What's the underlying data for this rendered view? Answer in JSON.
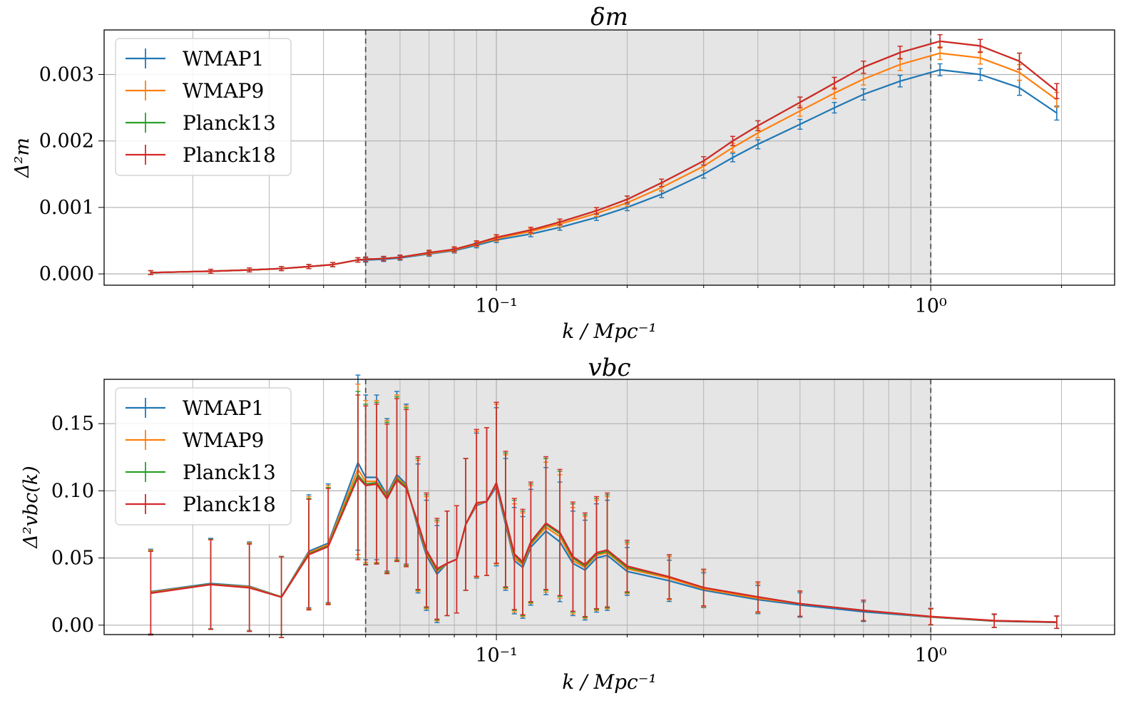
{
  "chart_data": [
    {
      "type": "line",
      "title": "δm",
      "xlabel": "k / Mpc⁻¹",
      "ylabel": "Δ²m",
      "xscale": "log",
      "xlim": [
        0.0125,
        2.65
      ],
      "ylim": [
        -0.00017,
        0.00367
      ],
      "yticks": [
        "0.000",
        "0.001",
        "0.002",
        "0.003"
      ],
      "ytick_values": [
        0,
        0.001,
        0.002,
        0.003
      ],
      "xticks": [
        "10⁻¹",
        "10⁰"
      ],
      "xtick_values": [
        0.1,
        1.0
      ],
      "shaded_range": [
        0.05,
        1.0
      ],
      "grid": true,
      "legend_position": "top-left",
      "error_bars": true,
      "series": [
        {
          "name": "WMAP1",
          "color": "#1f77b4",
          "x": [
            0.016,
            0.022,
            0.027,
            0.032,
            0.037,
            0.042,
            0.048,
            0.05,
            0.055,
            0.06,
            0.07,
            0.08,
            0.09,
            0.1,
            0.12,
            0.14,
            0.17,
            0.2,
            0.24,
            0.3,
            0.35,
            0.4,
            0.5,
            0.6,
            0.7,
            0.85,
            1.05,
            1.3,
            1.6,
            1.95
          ],
          "y": [
            2e-05,
            4e-05,
            6e-05,
            8e-05,
            0.00011,
            0.00014,
            0.00021,
            0.00021,
            0.00022,
            0.00024,
            0.0003,
            0.00035,
            0.00043,
            0.00051,
            0.0006,
            0.0007,
            0.00085,
            0.001,
            0.0012,
            0.0015,
            0.00175,
            0.00195,
            0.00225,
            0.0025,
            0.0027,
            0.0029,
            0.00307,
            0.003,
            0.0028,
            0.00242
          ]
        },
        {
          "name": "WMAP9",
          "color": "#ff7f0e",
          "x": [
            0.016,
            0.022,
            0.027,
            0.032,
            0.037,
            0.042,
            0.048,
            0.05,
            0.055,
            0.06,
            0.07,
            0.08,
            0.09,
            0.1,
            0.12,
            0.14,
            0.17,
            0.2,
            0.24,
            0.3,
            0.35,
            0.4,
            0.5,
            0.6,
            0.7,
            0.85,
            1.05,
            1.3,
            1.6,
            1.95
          ],
          "y": [
            2e-05,
            4e-05,
            6e-05,
            8e-05,
            0.00011,
            0.00014,
            0.00021,
            0.00022,
            0.00023,
            0.00025,
            0.00031,
            0.00036,
            0.00045,
            0.00053,
            0.00064,
            0.00075,
            0.00091,
            0.00107,
            0.0013,
            0.00162,
            0.0019,
            0.00212,
            0.00245,
            0.00272,
            0.00293,
            0.00315,
            0.00332,
            0.00325,
            0.00303,
            0.00262
          ]
        },
        {
          "name": "Planck13",
          "color": "#2ca02c",
          "x": [
            0.016,
            0.022,
            0.027,
            0.032,
            0.037,
            0.042,
            0.048,
            0.05,
            0.055,
            0.06,
            0.07,
            0.08,
            0.09,
            0.1,
            0.12,
            0.14,
            0.17,
            0.2,
            0.24,
            0.3,
            0.35,
            0.4,
            0.5,
            0.6,
            0.7,
            0.85,
            1.05,
            1.3,
            1.6,
            1.95
          ],
          "y": [
            2e-05,
            4e-05,
            6e-05,
            8e-05,
            0.00011,
            0.00014,
            0.00021,
            0.00022,
            0.00023,
            0.00025,
            0.00032,
            0.00037,
            0.00046,
            0.00055,
            0.00066,
            0.00078,
            0.00095,
            0.00112,
            0.00137,
            0.0017,
            0.002,
            0.00223,
            0.00258,
            0.00287,
            0.00311,
            0.00333,
            0.0035,
            0.00343,
            0.0032,
            0.00275
          ]
        },
        {
          "name": "Planck18",
          "color": "#d62728",
          "x": [
            0.016,
            0.022,
            0.027,
            0.032,
            0.037,
            0.042,
            0.048,
            0.05,
            0.055,
            0.06,
            0.07,
            0.08,
            0.09,
            0.1,
            0.12,
            0.14,
            0.17,
            0.2,
            0.24,
            0.3,
            0.35,
            0.4,
            0.5,
            0.6,
            0.7,
            0.85,
            1.05,
            1.3,
            1.6,
            1.95
          ],
          "y": [
            2e-05,
            4e-05,
            6e-05,
            8e-05,
            0.00011,
            0.00014,
            0.00021,
            0.00022,
            0.00023,
            0.00025,
            0.00032,
            0.00037,
            0.00046,
            0.00055,
            0.00066,
            0.00078,
            0.00095,
            0.00112,
            0.00137,
            0.0017,
            0.002,
            0.00223,
            0.00258,
            0.00287,
            0.00311,
            0.00333,
            0.0035,
            0.00343,
            0.0032,
            0.00275
          ]
        }
      ]
    },
    {
      "type": "line",
      "title": "vbc",
      "xlabel": "k / Mpc⁻¹",
      "ylabel": "Δ²vbc(k)",
      "xscale": "log",
      "xlim": [
        0.0125,
        2.65
      ],
      "ylim": [
        -0.007,
        0.183
      ],
      "yticks": [
        "0.00",
        "0.05",
        "0.10",
        "0.15"
      ],
      "ytick_values": [
        0,
        0.05,
        0.1,
        0.15
      ],
      "xticks": [
        "10⁻¹",
        "10⁰"
      ],
      "xtick_values": [
        0.1,
        1.0
      ],
      "shaded_range": [
        0.05,
        1.0
      ],
      "grid": true,
      "legend_position": "top-left",
      "error_bars": true,
      "series": [
        {
          "name": "WMAP1",
          "color": "#1f77b4",
          "x": [
            0.016,
            0.022,
            0.027,
            0.032,
            0.037,
            0.041,
            0.048,
            0.05,
            0.053,
            0.056,
            0.059,
            0.062,
            0.066,
            0.069,
            0.073,
            0.077,
            0.081,
            0.085,
            0.09,
            0.095,
            0.1,
            0.105,
            0.11,
            0.115,
            0.12,
            0.13,
            0.14,
            0.15,
            0.16,
            0.17,
            0.18,
            0.2,
            0.25,
            0.3,
            0.4,
            0.5,
            0.7,
            1.0,
            1.4,
            1.95
          ],
          "y": [
            0.025,
            0.031,
            0.029,
            0.021,
            0.055,
            0.061,
            0.121,
            0.11,
            0.11,
            0.097,
            0.112,
            0.105,
            0.072,
            0.052,
            0.038,
            0.046,
            0.049,
            0.075,
            0.089,
            0.092,
            0.103,
            0.075,
            0.048,
            0.043,
            0.058,
            0.07,
            0.062,
            0.046,
            0.041,
            0.05,
            0.052,
            0.04,
            0.033,
            0.026,
            0.019,
            0.015,
            0.01,
            0.006,
            0.003,
            0.002
          ]
        },
        {
          "name": "WMAP9",
          "color": "#ff7f0e",
          "x": [
            0.016,
            0.022,
            0.027,
            0.032,
            0.037,
            0.041,
            0.048,
            0.05,
            0.053,
            0.056,
            0.059,
            0.062,
            0.066,
            0.069,
            0.073,
            0.077,
            0.081,
            0.085,
            0.09,
            0.095,
            0.1,
            0.105,
            0.11,
            0.115,
            0.12,
            0.13,
            0.14,
            0.15,
            0.16,
            0.17,
            0.18,
            0.2,
            0.25,
            0.3,
            0.4,
            0.5,
            0.7,
            1.0,
            1.4,
            1.95
          ],
          "y": [
            0.0245,
            0.0305,
            0.0285,
            0.021,
            0.054,
            0.06,
            0.116,
            0.107,
            0.107,
            0.096,
            0.11,
            0.104,
            0.074,
            0.054,
            0.04,
            0.046,
            0.049,
            0.075,
            0.09,
            0.092,
            0.105,
            0.077,
            0.05,
            0.045,
            0.06,
            0.073,
            0.066,
            0.048,
            0.043,
            0.052,
            0.054,
            0.042,
            0.035,
            0.027,
            0.02,
            0.016,
            0.011,
            0.0062,
            0.0032,
            0.0022
          ]
        },
        {
          "name": "Planck13",
          "color": "#2ca02c",
          "x": [
            0.016,
            0.022,
            0.027,
            0.032,
            0.037,
            0.041,
            0.048,
            0.05,
            0.053,
            0.056,
            0.059,
            0.062,
            0.066,
            0.069,
            0.073,
            0.077,
            0.081,
            0.085,
            0.09,
            0.095,
            0.1,
            0.105,
            0.11,
            0.115,
            0.12,
            0.13,
            0.14,
            0.15,
            0.16,
            0.17,
            0.18,
            0.2,
            0.25,
            0.3,
            0.4,
            0.5,
            0.7,
            1.0,
            1.4,
            1.95
          ],
          "y": [
            0.024,
            0.0305,
            0.028,
            0.021,
            0.053,
            0.059,
            0.112,
            0.105,
            0.106,
            0.095,
            0.109,
            0.103,
            0.075,
            0.055,
            0.041,
            0.046,
            0.049,
            0.075,
            0.091,
            0.092,
            0.106,
            0.078,
            0.052,
            0.046,
            0.061,
            0.075,
            0.068,
            0.05,
            0.044,
            0.053,
            0.055,
            0.043,
            0.036,
            0.028,
            0.021,
            0.016,
            0.011,
            0.0064,
            0.0033,
            0.0023
          ]
        },
        {
          "name": "Planck18",
          "color": "#d62728",
          "x": [
            0.016,
            0.022,
            0.027,
            0.032,
            0.037,
            0.041,
            0.048,
            0.05,
            0.053,
            0.056,
            0.059,
            0.062,
            0.066,
            0.069,
            0.073,
            0.077,
            0.081,
            0.085,
            0.09,
            0.095,
            0.1,
            0.105,
            0.11,
            0.115,
            0.12,
            0.13,
            0.14,
            0.15,
            0.16,
            0.17,
            0.18,
            0.2,
            0.25,
            0.3,
            0.4,
            0.5,
            0.7,
            1.0,
            1.4,
            1.95
          ],
          "y": [
            0.0238,
            0.0302,
            0.0278,
            0.0208,
            0.0525,
            0.0585,
            0.11,
            0.104,
            0.105,
            0.094,
            0.108,
            0.102,
            0.076,
            0.056,
            0.042,
            0.046,
            0.049,
            0.075,
            0.091,
            0.092,
            0.106,
            0.079,
            0.053,
            0.047,
            0.062,
            0.076,
            0.069,
            0.051,
            0.045,
            0.054,
            0.056,
            0.044,
            0.036,
            0.028,
            0.021,
            0.016,
            0.011,
            0.0065,
            0.0034,
            0.0023
          ]
        }
      ]
    }
  ]
}
